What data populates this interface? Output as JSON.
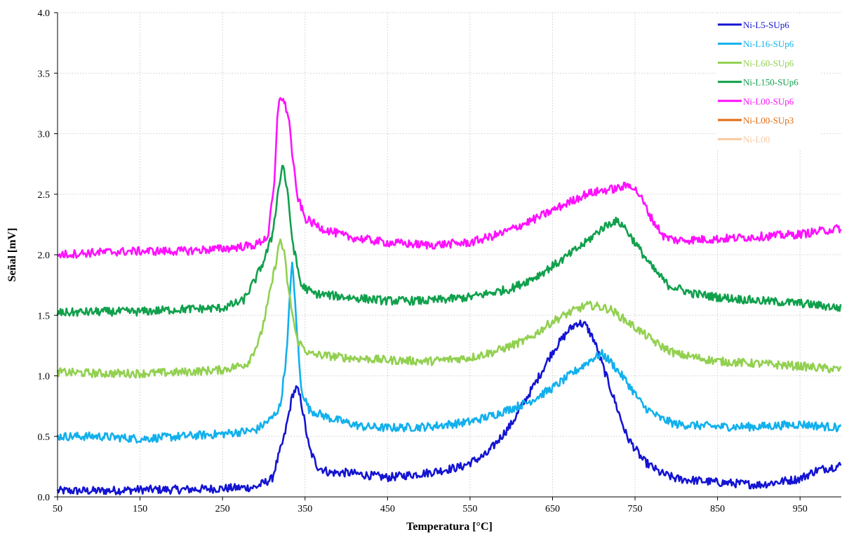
{
  "chart_data": {
    "type": "line",
    "title": "",
    "xlabel": "Temperatura [°C]",
    "ylabel": "Señal [mV]",
    "xlim": [
      50,
      1000
    ],
    "ylim": [
      0.0,
      4.0
    ],
    "x_ticks": [
      50,
      150,
      250,
      350,
      450,
      550,
      650,
      750,
      850,
      950
    ],
    "x_tick_labels": [
      "50",
      "150",
      "250",
      "350",
      "450",
      "550",
      "650",
      "750",
      "850",
      "950"
    ],
    "y_ticks": [
      0.0,
      0.5,
      1.0,
      1.5,
      2.0,
      2.5,
      3.0,
      3.5,
      4.0
    ],
    "y_tick_labels": [
      "0.0",
      "0.5",
      "1.0",
      "1.5",
      "2.0",
      "2.5",
      "3.0",
      "3.5",
      "4.0"
    ],
    "grid": true,
    "legend_position": "top-right",
    "series": [
      {
        "name": "Ni-L5-SUp6",
        "color": "#1414d2",
        "points": [
          [
            50,
            0.05
          ],
          [
            100,
            0.05
          ],
          [
            150,
            0.06
          ],
          [
            200,
            0.06
          ],
          [
            250,
            0.07
          ],
          [
            290,
            0.08
          ],
          [
            310,
            0.15
          ],
          [
            325,
            0.5
          ],
          [
            335,
            0.85
          ],
          [
            340,
            0.9
          ],
          [
            345,
            0.8
          ],
          [
            355,
            0.4
          ],
          [
            365,
            0.25
          ],
          [
            380,
            0.2
          ],
          [
            400,
            0.2
          ],
          [
            450,
            0.16
          ],
          [
            500,
            0.2
          ],
          [
            540,
            0.25
          ],
          [
            570,
            0.35
          ],
          [
            600,
            0.6
          ],
          [
            630,
            0.95
          ],
          [
            650,
            1.2
          ],
          [
            670,
            1.38
          ],
          [
            680,
            1.44
          ],
          [
            690,
            1.42
          ],
          [
            700,
            1.3
          ],
          [
            720,
            0.9
          ],
          [
            740,
            0.5
          ],
          [
            760,
            0.3
          ],
          [
            780,
            0.2
          ],
          [
            800,
            0.15
          ],
          [
            850,
            0.12
          ],
          [
            900,
            0.1
          ],
          [
            950,
            0.15
          ],
          [
            970,
            0.22
          ],
          [
            1000,
            0.26
          ]
        ]
      },
      {
        "name": "Ni-L16-SUp6",
        "color": "#12b0ec",
        "points": [
          [
            50,
            0.5
          ],
          [
            100,
            0.5
          ],
          [
            150,
            0.48
          ],
          [
            200,
            0.5
          ],
          [
            250,
            0.52
          ],
          [
            290,
            0.55
          ],
          [
            310,
            0.65
          ],
          [
            320,
            0.75
          ],
          [
            328,
            1.2
          ],
          [
            334,
            1.97
          ],
          [
            338,
            1.6
          ],
          [
            345,
            0.9
          ],
          [
            355,
            0.72
          ],
          [
            380,
            0.65
          ],
          [
            420,
            0.58
          ],
          [
            450,
            0.57
          ],
          [
            500,
            0.58
          ],
          [
            550,
            0.62
          ],
          [
            580,
            0.68
          ],
          [
            620,
            0.78
          ],
          [
            650,
            0.9
          ],
          [
            680,
            1.05
          ],
          [
            700,
            1.15
          ],
          [
            710,
            1.18
          ],
          [
            720,
            1.12
          ],
          [
            740,
            0.95
          ],
          [
            760,
            0.75
          ],
          [
            780,
            0.65
          ],
          [
            800,
            0.6
          ],
          [
            850,
            0.58
          ],
          [
            900,
            0.58
          ],
          [
            950,
            0.6
          ],
          [
            1000,
            0.57
          ]
        ]
      },
      {
        "name": "Ni-L60-SUp6",
        "color": "#92d050",
        "points": [
          [
            50,
            1.03
          ],
          [
            100,
            1.02
          ],
          [
            150,
            1.02
          ],
          [
            200,
            1.03
          ],
          [
            250,
            1.05
          ],
          [
            280,
            1.1
          ],
          [
            295,
            1.3
          ],
          [
            305,
            1.6
          ],
          [
            315,
            1.95
          ],
          [
            320,
            2.13
          ],
          [
            325,
            2.0
          ],
          [
            330,
            1.7
          ],
          [
            340,
            1.3
          ],
          [
            355,
            1.18
          ],
          [
            400,
            1.15
          ],
          [
            450,
            1.13
          ],
          [
            500,
            1.12
          ],
          [
            550,
            1.15
          ],
          [
            580,
            1.2
          ],
          [
            620,
            1.3
          ],
          [
            650,
            1.45
          ],
          [
            670,
            1.52
          ],
          [
            690,
            1.58
          ],
          [
            700,
            1.58
          ],
          [
            720,
            1.55
          ],
          [
            740,
            1.45
          ],
          [
            760,
            1.35
          ],
          [
            780,
            1.25
          ],
          [
            800,
            1.18
          ],
          [
            850,
            1.12
          ],
          [
            900,
            1.1
          ],
          [
            950,
            1.08
          ],
          [
            1000,
            1.05
          ]
        ]
      },
      {
        "name": "Ni-L150-SUp6",
        "color": "#10a04c",
        "points": [
          [
            50,
            1.52
          ],
          [
            100,
            1.53
          ],
          [
            150,
            1.53
          ],
          [
            200,
            1.55
          ],
          [
            250,
            1.56
          ],
          [
            275,
            1.62
          ],
          [
            290,
            1.8
          ],
          [
            300,
            1.95
          ],
          [
            310,
            2.15
          ],
          [
            318,
            2.55
          ],
          [
            323,
            2.76
          ],
          [
            328,
            2.55
          ],
          [
            335,
            2.1
          ],
          [
            345,
            1.75
          ],
          [
            360,
            1.68
          ],
          [
            400,
            1.65
          ],
          [
            450,
            1.62
          ],
          [
            500,
            1.62
          ],
          [
            550,
            1.65
          ],
          [
            600,
            1.72
          ],
          [
            630,
            1.82
          ],
          [
            660,
            1.95
          ],
          [
            690,
            2.1
          ],
          [
            710,
            2.22
          ],
          [
            725,
            2.28
          ],
          [
            735,
            2.25
          ],
          [
            750,
            2.1
          ],
          [
            770,
            1.9
          ],
          [
            790,
            1.75
          ],
          [
            820,
            1.68
          ],
          [
            850,
            1.65
          ],
          [
            900,
            1.62
          ],
          [
            950,
            1.6
          ],
          [
            1000,
            1.56
          ]
        ]
      },
      {
        "name": "Ni-L00-SUp6",
        "color": "#ff10ff",
        "points": [
          [
            50,
            2.0
          ],
          [
            100,
            2.02
          ],
          [
            150,
            2.03
          ],
          [
            200,
            2.03
          ],
          [
            250,
            2.05
          ],
          [
            290,
            2.08
          ],
          [
            305,
            2.15
          ],
          [
            313,
            2.6
          ],
          [
            317,
            3.2
          ],
          [
            320,
            3.32
          ],
          [
            325,
            3.25
          ],
          [
            330,
            3.15
          ],
          [
            335,
            2.8
          ],
          [
            340,
            2.5
          ],
          [
            350,
            2.3
          ],
          [
            370,
            2.22
          ],
          [
            400,
            2.15
          ],
          [
            450,
            2.1
          ],
          [
            500,
            2.08
          ],
          [
            550,
            2.1
          ],
          [
            590,
            2.18
          ],
          [
            630,
            2.3
          ],
          [
            660,
            2.4
          ],
          [
            690,
            2.5
          ],
          [
            710,
            2.53
          ],
          [
            730,
            2.55
          ],
          [
            745,
            2.58
          ],
          [
            755,
            2.5
          ],
          [
            770,
            2.3
          ],
          [
            785,
            2.15
          ],
          [
            800,
            2.12
          ],
          [
            850,
            2.13
          ],
          [
            900,
            2.15
          ],
          [
            950,
            2.17
          ],
          [
            1000,
            2.22
          ]
        ]
      },
      {
        "name": "Ni-L00-SUp3",
        "color": "#e06a10",
        "points": []
      },
      {
        "name": "Ni-L00",
        "color": "#f7c89d",
        "points": []
      }
    ]
  }
}
